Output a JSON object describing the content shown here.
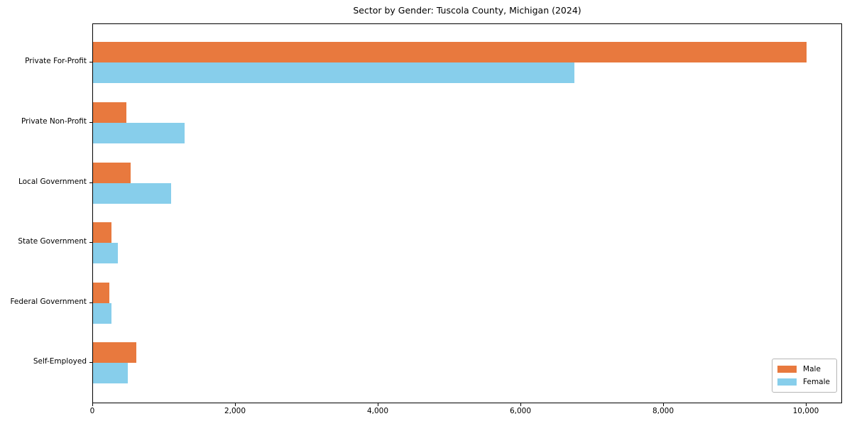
{
  "title": "Sector by Gender: Tuscola County, Michigan (2024)",
  "colors": {
    "male": "#e8793e",
    "female": "#87ceeb",
    "axis": "#000000",
    "legend_border": "#b6b6b6",
    "background": "#ffffff"
  },
  "chart_data": {
    "type": "bar",
    "orientation": "horizontal",
    "title": "Sector by Gender: Tuscola County, Michigan (2024)",
    "xlabel": "",
    "ylabel": "",
    "categories": [
      "Private For-Profit",
      "Private Non-Profit",
      "Local Government",
      "State Government",
      "Federal Government",
      "Self-Employed"
    ],
    "series": [
      {
        "name": "Male",
        "color": "#e8793e",
        "values": [
          10000,
          470,
          530,
          260,
          230,
          610
        ]
      },
      {
        "name": "Female",
        "color": "#87ceeb",
        "values": [
          6750,
          1280,
          1090,
          350,
          260,
          490
        ]
      }
    ],
    "xlim": [
      0,
      10507
    ],
    "xticks": [
      0,
      2000,
      4000,
      6000,
      8000,
      10000
    ],
    "xtick_labels": [
      "0",
      "2,000",
      "4,000",
      "6,000",
      "8,000",
      "10,000"
    ],
    "grid": false,
    "legend_position": "lower right",
    "legend_entries": [
      "Male",
      "Female"
    ]
  }
}
